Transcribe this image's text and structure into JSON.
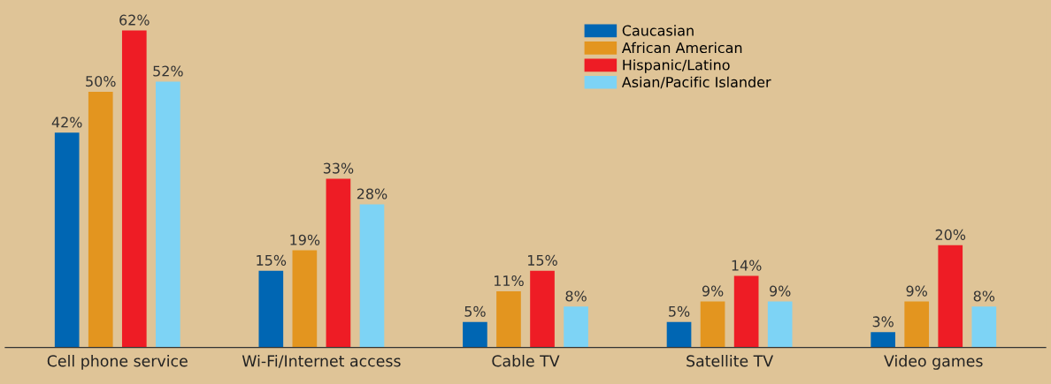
{
  "chart_data": {
    "type": "bar",
    "categories": [
      "Cell phone service",
      "Wi-Fi/Internet access",
      "Cable TV",
      "Satellite TV",
      "Video games"
    ],
    "series": [
      {
        "name": "Caucasian",
        "color": "#0066b3",
        "values": [
          42,
          15,
          5,
          5,
          3
        ],
        "value_labels": [
          "42%",
          "15%",
          "5%",
          "5%",
          "3%"
        ]
      },
      {
        "name": "African American",
        "color": "#e3951f",
        "values": [
          50,
          19,
          11,
          9,
          9
        ],
        "value_labels": [
          "50%",
          "19%",
          "11%",
          "9%",
          "9%"
        ]
      },
      {
        "name": "Hispanic/Latino",
        "color": "#ee1c25",
        "values": [
          62,
          33,
          15,
          14,
          20
        ],
        "value_labels": [
          "62%",
          "33%",
          "15%",
          "14%",
          "20%"
        ]
      },
      {
        "name": "Asian/Pacific Islander",
        "color": "#7dd3f5",
        "values": [
          52,
          28,
          8,
          9,
          8
        ],
        "value_labels": [
          "52%",
          "28%",
          "8%",
          "9%",
          "8%"
        ]
      }
    ],
    "grid": false,
    "legend": "top right"
  }
}
